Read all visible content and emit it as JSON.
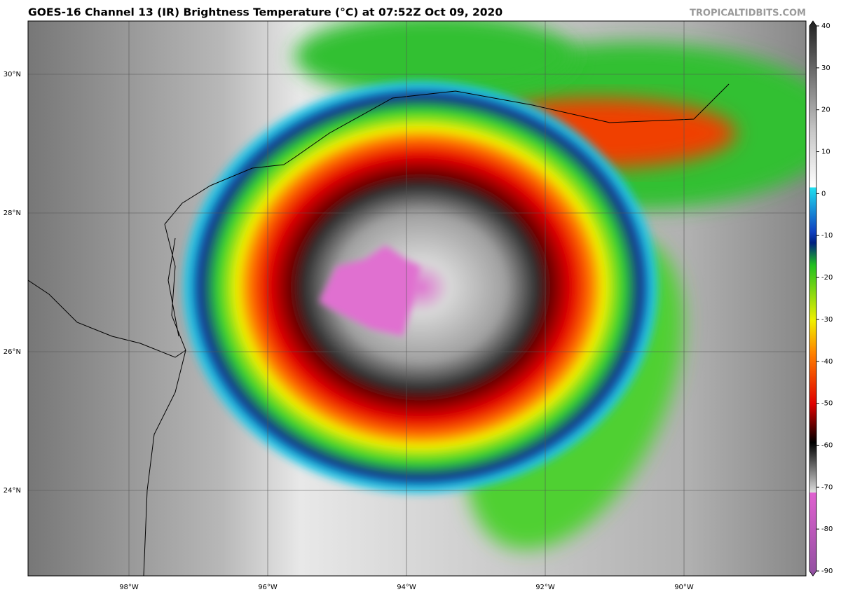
{
  "title": "GOES-16 Channel 13 (IR) Brightness Temperature (°C) at 07:52Z Oct 09, 2020",
  "source": "TROPICALTIDBITS.COM",
  "map": {
    "lon_labels": [
      "98°W",
      "96°W",
      "94°W",
      "92°W",
      "90°W"
    ],
    "lat_labels": [
      "30°N",
      "28°N",
      "26°N",
      "24°N"
    ]
  },
  "colorbar": {
    "ticks": [
      40,
      30,
      20,
      10,
      0,
      -10,
      -20,
      -30,
      -40,
      -50,
      -60,
      -70,
      -80,
      -90
    ]
  }
}
